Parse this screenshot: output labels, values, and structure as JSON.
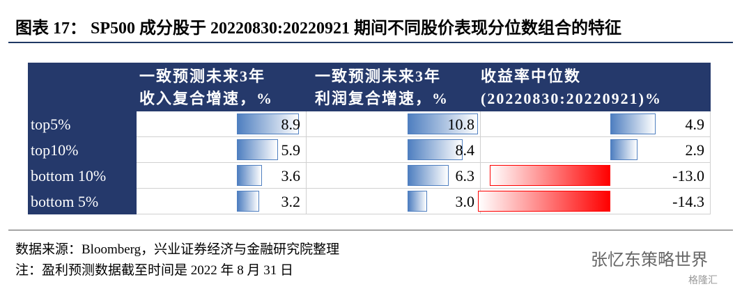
{
  "title": "图表 17：  SP500 成分股于 20220830:20220921 期间不同股价表现分位数组合的特征",
  "table": {
    "headers": [
      [
        "一致预测未来3年",
        "收入复合增速，%"
      ],
      [
        "一致预测未来3年",
        "利润复合增速，%"
      ],
      [
        "收益率中位数",
        "(20220830:20220921)%"
      ]
    ],
    "rows": [
      [
        "top5%",
        "8.9",
        "10.8",
        "4.9"
      ],
      [
        "top10%",
        "5.9",
        "8.4",
        "2.9"
      ],
      [
        "bottom 10%",
        "3.6",
        "6.3",
        "-13.0"
      ],
      [
        "bottom 5%",
        "3.2",
        "3.0",
        "-14.3"
      ]
    ]
  },
  "footer": {
    "source": "数据来源：Bloomberg，兴业证券经济与金融研究院整理",
    "note": "注：盈利预测数据截至时间是 2022 年 8 月 31 日"
  },
  "watermark": "张忆东策略世界",
  "logo": "格隆汇"
}
